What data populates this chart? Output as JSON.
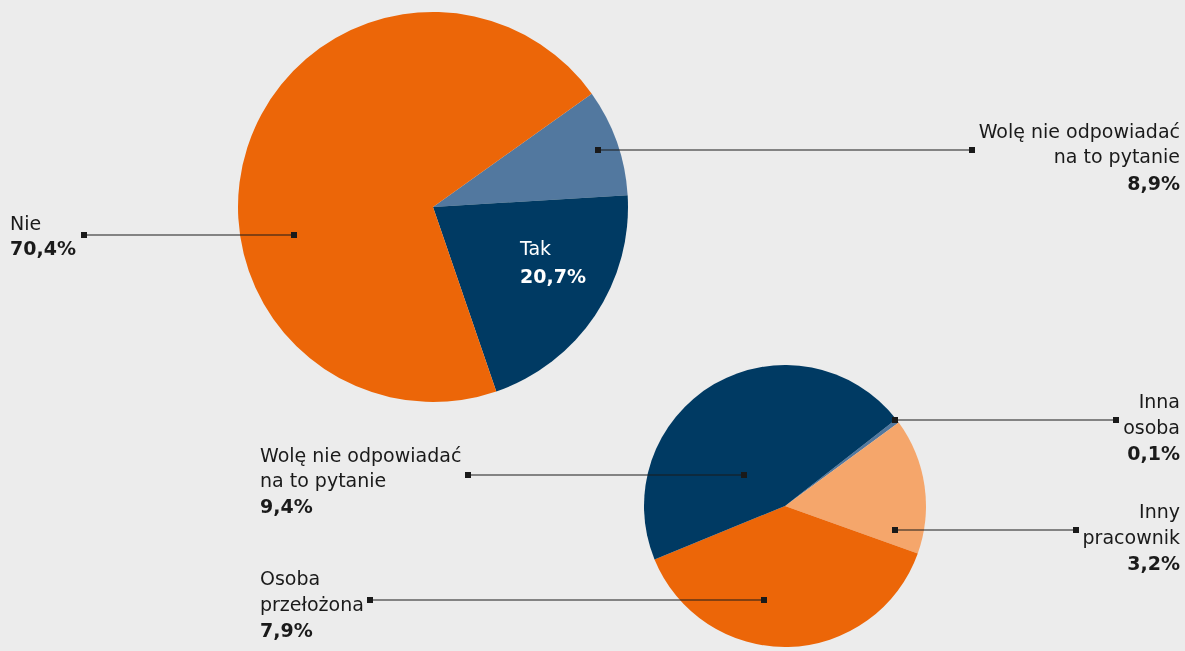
{
  "chart_data": [
    {
      "type": "pie",
      "categories": [
        "Wolę nie odpowiadać na to pytanie",
        "Tak",
        "Nie"
      ],
      "values": [
        8.9,
        20.7,
        70.4
      ],
      "colors": [
        "#52789f",
        "#003a63",
        "#ec6608"
      ],
      "value_labels": [
        "8,9%",
        "20,7%",
        "70,4%"
      ]
    },
    {
      "type": "pie",
      "categories": [
        "Inna osoba",
        "Inny pracownik",
        "Osoba przełożona",
        "Wolę nie odpowiadać na to pytanie"
      ],
      "values": [
        0.1,
        3.2,
        7.9,
        9.4
      ],
      "colors": [
        "#52789f",
        "#f5a66b",
        "#ec6608",
        "#003a63"
      ],
      "value_labels": [
        "0,1%",
        "3,2%",
        "7,9%",
        "9,4%"
      ]
    }
  ]
}
